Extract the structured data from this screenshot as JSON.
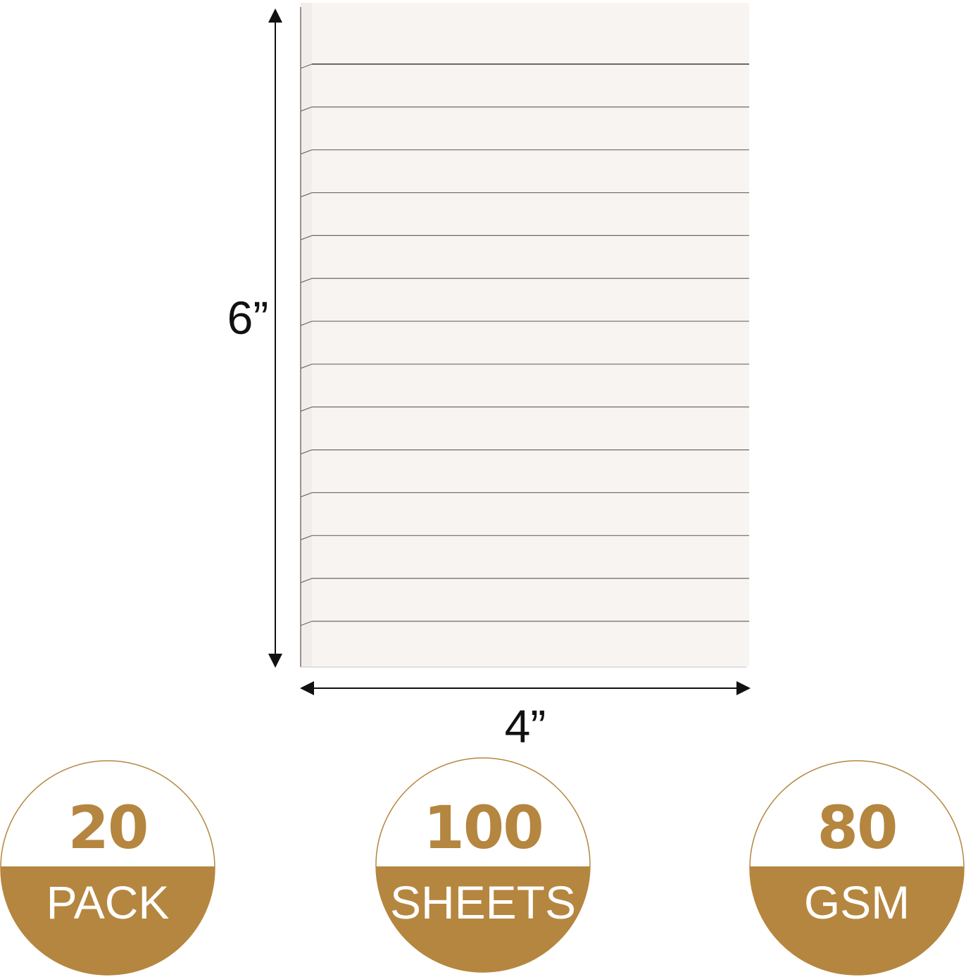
{
  "dimensions": {
    "height_label": "6”",
    "width_label": "4”"
  },
  "notepad": {
    "ruled_lines": 14,
    "paper_color": "#f8f4f1",
    "line_color": "#6e6866"
  },
  "badges": [
    {
      "value": "20",
      "label": "PACK"
    },
    {
      "value": "100",
      "label": "SHEETS"
    },
    {
      "value": "80",
      "label": "GSM"
    }
  ],
  "colors": {
    "accent_gold": "#b5863f",
    "text_dark": "#111111"
  }
}
